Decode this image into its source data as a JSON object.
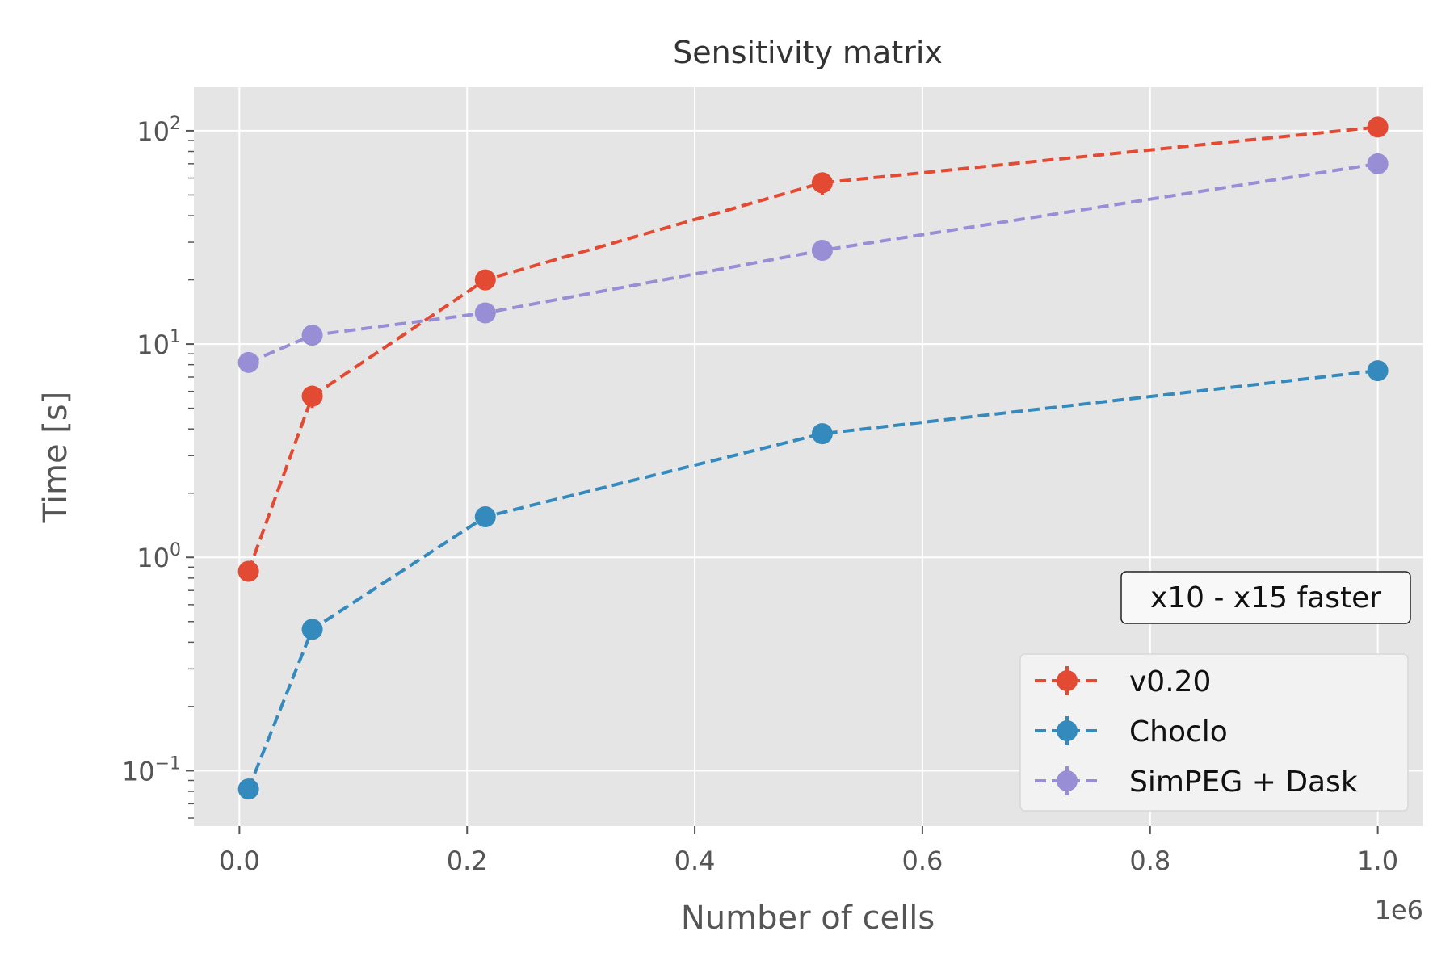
{
  "chart_data": {
    "type": "line",
    "title": "Sensitivity matrix",
    "xlabel": "Number of cells",
    "ylabel": "Time [s]",
    "x_offset_label": "1e6",
    "yscale": "log",
    "xlim": [
      -40000,
      1040000
    ],
    "ylim": [
      0.055,
      160
    ],
    "x_ticks": [
      0,
      200000,
      400000,
      600000,
      800000,
      1000000
    ],
    "x_tick_labels": [
      "0.0",
      "0.2",
      "0.4",
      "0.6",
      "0.8",
      "1.0"
    ],
    "y_ticks": [
      0.1,
      1,
      10,
      100
    ],
    "y_tick_labels": [
      {
        "base": "10",
        "exp": "−1"
      },
      {
        "base": "10",
        "exp": "0"
      },
      {
        "base": "10",
        "exp": "1"
      },
      {
        "base": "10",
        "exp": "2"
      }
    ],
    "grid": true,
    "legend_position": "lower-right",
    "annotation": "x10 - x15 faster",
    "x": [
      8000,
      64000,
      216000,
      512000,
      1000000
    ],
    "series": [
      {
        "name": "v0.20",
        "color": "#E24A33",
        "values": [
          0.86,
          5.7,
          20.0,
          57.0,
          104.0
        ],
        "err_rel": [
          0.0,
          0.12,
          0.0,
          0.12,
          0.0
        ]
      },
      {
        "name": "Choclo",
        "color": "#348ABD",
        "values": [
          0.082,
          0.46,
          1.55,
          3.8,
          7.5
        ],
        "err_rel": [
          0,
          0,
          0,
          0,
          0
        ]
      },
      {
        "name": "SimPEG + Dask",
        "color": "#988ED5",
        "values": [
          8.2,
          11.0,
          14.0,
          27.5,
          70.0
        ],
        "err_rel": [
          0,
          0,
          0,
          0,
          0
        ]
      }
    ],
    "colors": {
      "plot_bg": "#E5E5E5",
      "grid": "#FFFFFF",
      "tick": "#555555"
    }
  }
}
